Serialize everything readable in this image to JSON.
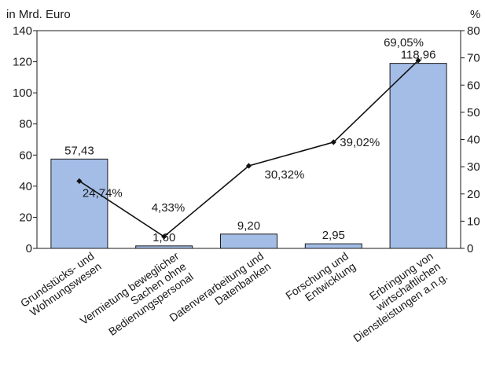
{
  "chart_data": {
    "type": "bar+line",
    "categories": [
      [
        "Grundstücks- und",
        "Wohnungswesen"
      ],
      [
        "Vermietung beweglicher",
        "Sachen ohne",
        "Bedienungspersonal"
      ],
      [
        "Datenverarbeitung und",
        "Datenbanken"
      ],
      [
        "Forschung und",
        "Entwicklung"
      ],
      [
        "Erbringung von",
        "wirtschaftlichen",
        "Dienstleistungen a.n.g."
      ]
    ],
    "bar_series": {
      "values": [
        57.43,
        1.6,
        9.2,
        2.95,
        118.96
      ],
      "labels": [
        "57,43",
        "1,60",
        "9,20",
        "2,95",
        "118,96"
      ],
      "color": "#a3bde6",
      "stroke": "#1a1a1a"
    },
    "line_series": {
      "values": [
        24.74,
        4.33,
        30.32,
        39.02,
        69.05
      ],
      "labels": [
        "24,74%",
        "4,33%",
        "30,32%",
        "39,02%",
        "69,05%"
      ],
      "color": "#111111"
    },
    "y_left": {
      "label": "in Mrd. Euro",
      "min": 0,
      "max": 140,
      "ticks": [
        0,
        20,
        40,
        60,
        80,
        100,
        120,
        140
      ]
    },
    "y_right": {
      "label": "%",
      "min": 0,
      "max": 80,
      "ticks": [
        0,
        10,
        20,
        30,
        40,
        50,
        60,
        70,
        80
      ]
    },
    "grid": false,
    "legend": "none"
  }
}
